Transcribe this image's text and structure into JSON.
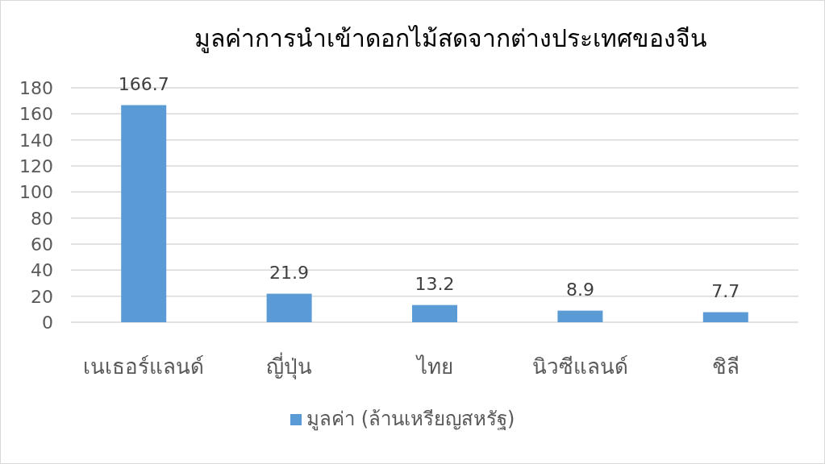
{
  "chart_data": {
    "type": "bar",
    "title": "มูลค่าการนำเข้าดอกไม้สดจากต่างประเทศของจีน",
    "categories": [
      "เนเธอร์แลนด์",
      "ญี่ปุ่น",
      "ไทย",
      "นิวซีแลนด์",
      "ชิลี"
    ],
    "series": [
      {
        "name": "มูลค่า (ล้านเหรียญสหรัฐ)",
        "color": "#5b9bd5",
        "values": [
          166.7,
          21.9,
          13.2,
          8.9,
          7.7
        ]
      }
    ],
    "ylim": [
      0,
      180
    ],
    "yticks": [
      0,
      20,
      40,
      60,
      80,
      100,
      120,
      140,
      160,
      180
    ],
    "grid": "y",
    "legend": "bottom",
    "data_labels": true
  }
}
